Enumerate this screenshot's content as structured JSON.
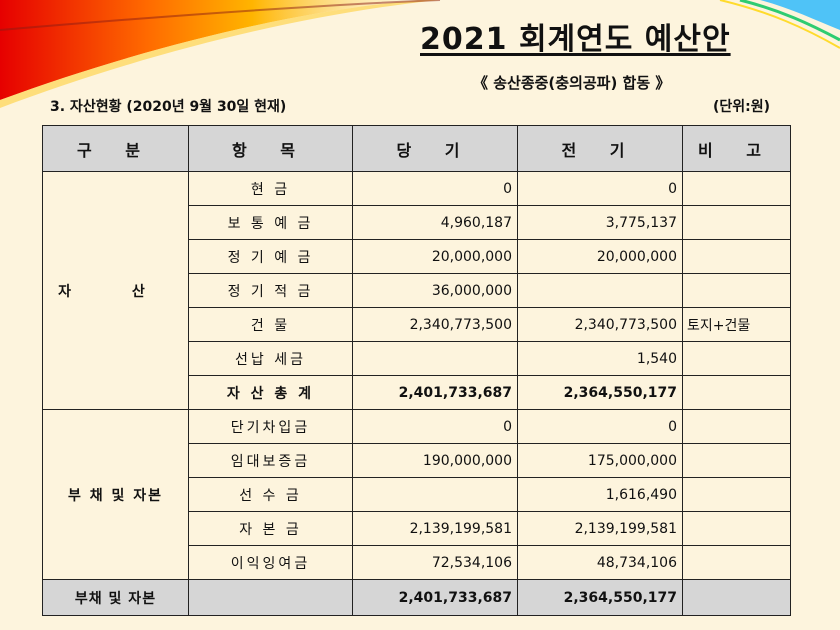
{
  "header": {
    "title": "2021 회계연도 예산안",
    "subtitle": "《 송산종중(충의공파) 합동 》",
    "section": "3. 자산현황 (2020년 9월 30일 현재)",
    "unit": "(단위:원)"
  },
  "table": {
    "columns": [
      "구 분",
      "항 목",
      "당 기",
      "전 기",
      "비 고"
    ],
    "assets": {
      "category": "자 산",
      "rows": [
        {
          "item": "현 금",
          "current": "0",
          "previous": "0",
          "note": ""
        },
        {
          "item": "보 통 예 금",
          "current": "4,960,187",
          "previous": "3,775,137",
          "note": ""
        },
        {
          "item": "정 기 예 금",
          "current": "20,000,000",
          "previous": "20,000,000",
          "note": ""
        },
        {
          "item": "정 기 적 금",
          "current": "36,000,000",
          "previous": "",
          "note": ""
        },
        {
          "item": "건 물",
          "current": "2,340,773,500",
          "previous": "2,340,773,500",
          "note": "토지+건물"
        },
        {
          "item": "선납 세금",
          "current": "",
          "previous": "1,540",
          "note": ""
        },
        {
          "item": "자 산 총 계",
          "current": "2,401,733,687",
          "previous": "2,364,550,177",
          "note": ""
        }
      ]
    },
    "liabilities": {
      "category": "부 채 및 자본",
      "rows": [
        {
          "item": "단기차입금",
          "current": "0",
          "previous": "0",
          "note": ""
        },
        {
          "item": "임대보증금",
          "current": "190,000,000",
          "previous": "175,000,000",
          "note": ""
        },
        {
          "item": "선 수 금",
          "current": "",
          "previous": "1,616,490",
          "note": ""
        },
        {
          "item": "자 본 금",
          "current": "2,139,199,581",
          "previous": "2,139,199,581",
          "note": ""
        },
        {
          "item": "이익잉여금",
          "current": "72,534,106",
          "previous": "48,734,106",
          "note": ""
        }
      ]
    },
    "total": {
      "label": "부채 및 자본",
      "item": "",
      "current": "2,401,733,687",
      "previous": "2,364,550,177",
      "note": ""
    }
  },
  "colors": {
    "background": "#fdf4dd",
    "header_fill": "#d6d6d6",
    "swoosh": [
      "#e60000",
      "#ff7a00",
      "#ffd400",
      "#6fcf97",
      "#1e90ff"
    ]
  }
}
